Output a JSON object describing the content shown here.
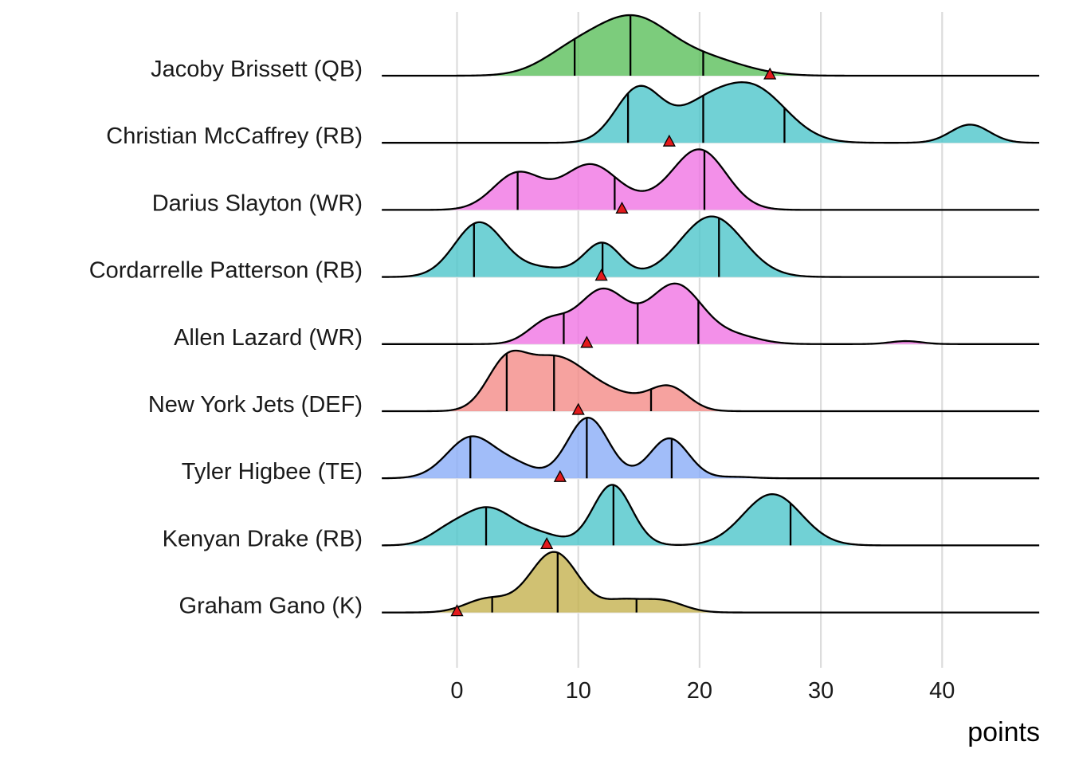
{
  "chart_data": {
    "type": "ridgeline",
    "title": "",
    "xlabel": "points",
    "ylabel": "",
    "xlim": [
      -6.2,
      48
    ],
    "x_ticks": [
      0,
      10,
      20,
      30,
      40
    ],
    "x_tick_labels": [
      "0",
      "10",
      "20",
      "30",
      "40"
    ],
    "grid": true,
    "marker": {
      "shape": "triangle",
      "color": "#e31a1c"
    },
    "series": [
      {
        "name": "Jacoby Brissett (QB)",
        "color": "#5bbf5b",
        "range": [
          -6.2,
          48
        ],
        "components": [
          [
            9.5,
            2.6,
            0.38
          ],
          [
            14.5,
            3.0,
            0.95
          ],
          [
            20.5,
            3.2,
            0.28
          ]
        ],
        "quantiles": [
          9.7,
          14.3,
          20.3
        ],
        "actual": 25.8
      },
      {
        "name": "Christian McCaffrey (RB)",
        "color": "#4ec6cb",
        "range": [
          -6.2,
          48
        ],
        "components": [
          [
            15.0,
            1.9,
            0.72
          ],
          [
            20.0,
            2.2,
            0.35
          ],
          [
            24.3,
            2.8,
            0.73
          ],
          [
            42.3,
            1.6,
            0.24
          ]
        ],
        "quantiles": [
          14.1,
          20.3,
          27.0
        ],
        "actual": 17.5
      },
      {
        "name": "Darius Slayton (WR)",
        "color": "#f074e4",
        "range": [
          -6.2,
          48
        ],
        "components": [
          [
            5.0,
            2.0,
            0.55
          ],
          [
            11.0,
            2.3,
            0.68
          ],
          [
            20.0,
            2.2,
            0.9
          ],
          [
            16.0,
            2.0,
            0.08
          ]
        ],
        "quantiles": [
          5.0,
          13.0,
          20.4
        ],
        "actual": 13.6
      },
      {
        "name": "Cordarrelle Patterson (RB)",
        "color": "#4ec6cb",
        "range": [
          -6.2,
          48
        ],
        "components": [
          [
            1.8,
            2.0,
            0.73
          ],
          [
            7.0,
            2.4,
            0.12
          ],
          [
            12.0,
            1.5,
            0.45
          ],
          [
            21.0,
            2.6,
            0.82
          ]
        ],
        "quantiles": [
          1.4,
          12.0,
          21.6
        ],
        "actual": 11.9
      },
      {
        "name": "Allen Lazard (WR)",
        "color": "#f074e4",
        "range": [
          -6.2,
          48
        ],
        "components": [
          [
            7.5,
            1.6,
            0.3
          ],
          [
            12.0,
            2.0,
            0.72
          ],
          [
            18.0,
            2.2,
            0.8
          ],
          [
            23.0,
            2.0,
            0.1
          ],
          [
            37.0,
            1.3,
            0.04
          ]
        ],
        "quantiles": [
          8.8,
          14.9,
          19.9
        ],
        "actual": 10.7
      },
      {
        "name": "New York Jets (DEF)",
        "color": "#f48b87",
        "range": [
          -6.2,
          48
        ],
        "components": [
          [
            4.0,
            1.6,
            0.63
          ],
          [
            8.0,
            2.6,
            0.8
          ],
          [
            13.0,
            2.5,
            0.22
          ],
          [
            17.5,
            1.6,
            0.35
          ]
        ],
        "quantiles": [
          4.1,
          8.0,
          16.0
        ],
        "actual": 10.0
      },
      {
        "name": "Tyler Higbee (TE)",
        "color": "#8aacf8",
        "range": [
          -6.2,
          48
        ],
        "components": [
          [
            1.2,
            2.0,
            0.6
          ],
          [
            5.0,
            1.6,
            0.16
          ],
          [
            10.8,
            1.7,
            0.88
          ],
          [
            17.5,
            1.6,
            0.58
          ],
          [
            23.0,
            1.5,
            0.02
          ]
        ],
        "quantiles": [
          1.1,
          10.7,
          17.7
        ],
        "actual": 8.5
      },
      {
        "name": "Kenyan Drake (RB)",
        "color": "#4ec6cb",
        "range": [
          -6.2,
          48
        ],
        "components": [
          [
            2.5,
            2.2,
            0.4
          ],
          [
            -1.0,
            1.5,
            0.1
          ],
          [
            7.0,
            1.8,
            0.1
          ],
          [
            12.8,
            1.6,
            0.65
          ],
          [
            26.0,
            2.4,
            0.55
          ]
        ],
        "quantiles": [
          2.4,
          12.9,
          27.5
        ],
        "actual": 7.4
      },
      {
        "name": "Graham Gano (K)",
        "color": "#c4b14f",
        "range": [
          -6.2,
          48
        ],
        "components": [
          [
            2.5,
            1.8,
            0.2
          ],
          [
            8.0,
            2.0,
            0.9
          ],
          [
            13.5,
            1.5,
            0.15
          ],
          [
            16.8,
            1.8,
            0.18
          ]
        ],
        "quantiles": [
          2.9,
          8.3,
          14.8
        ],
        "actual": 0.0
      }
    ]
  }
}
